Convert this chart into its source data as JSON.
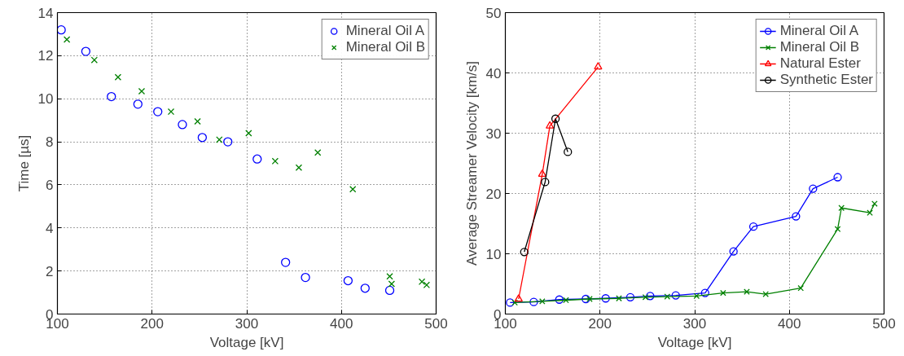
{
  "chart_data": [
    {
      "type": "scatter",
      "xlabel": "Voltage [kV]",
      "ylabel": "Time [µs]",
      "xlim": [
        100,
        500
      ],
      "ylim": [
        0,
        14
      ],
      "xticks": [
        100,
        200,
        300,
        400,
        500
      ],
      "yticks": [
        0,
        2,
        4,
        6,
        8,
        10,
        12,
        14
      ],
      "grid": true,
      "legend": "top right",
      "series": [
        {
          "name": "Mineral Oil A",
          "color": "#0000ff",
          "marker": "circle",
          "x": [
            104,
            130,
            157,
            185,
            206,
            232,
            253,
            280,
            311,
            341,
            362,
            407,
            425,
            451
          ],
          "values": [
            13.2,
            12.2,
            10.1,
            9.75,
            9.4,
            8.8,
            8.2,
            8.0,
            7.2,
            2.4,
            1.7,
            1.55,
            1.2,
            1.1
          ]
        },
        {
          "name": "Mineral Oil B",
          "color": "#008000",
          "marker": "cross",
          "x": [
            110,
            139,
            164,
            189,
            220,
            248,
            271,
            302,
            330,
            355,
            375,
            412,
            451,
            453,
            485,
            490
          ],
          "values": [
            12.75,
            11.8,
            11.0,
            10.35,
            9.4,
            8.95,
            8.1,
            8.4,
            7.1,
            6.8,
            7.5,
            5.8,
            1.75,
            1.4,
            1.5,
            1.35
          ]
        }
      ]
    },
    {
      "type": "line",
      "xlabel": "Voltage [kV]",
      "ylabel": "Average Streamer Velocity [km/s]",
      "xlim": [
        100,
        500
      ],
      "ylim": [
        0,
        50
      ],
      "xticks": [
        100,
        200,
        300,
        400,
        500
      ],
      "yticks": [
        0,
        10,
        20,
        30,
        40,
        50
      ],
      "grid": true,
      "legend": "top right",
      "series": [
        {
          "name": "Mineral Oil A",
          "color": "#0000ff",
          "marker": "circle",
          "x": [
            105,
            130,
            157,
            185,
            206,
            232,
            253,
            280,
            311,
            341,
            362,
            407,
            425,
            451
          ],
          "values": [
            1.9,
            2.0,
            2.4,
            2.5,
            2.6,
            2.8,
            3.0,
            3.1,
            3.5,
            10.4,
            14.5,
            16.2,
            20.8,
            22.7
          ]
        },
        {
          "name": "Mineral Oil B",
          "color": "#008000",
          "marker": "cross",
          "x": [
            110,
            139,
            164,
            189,
            220,
            248,
            271,
            302,
            330,
            355,
            375,
            412,
            451,
            455,
            485,
            490
          ],
          "values": [
            1.9,
            2.1,
            2.3,
            2.5,
            2.6,
            2.8,
            2.9,
            3.0,
            3.5,
            3.7,
            3.3,
            4.3,
            14.1,
            17.6,
            16.8,
            18.3
          ]
        },
        {
          "name": "Natural Ester",
          "color": "#ff0000",
          "marker": "triangle",
          "x": [
            114,
            139,
            147,
            198
          ],
          "values": [
            2.5,
            23.2,
            31.2,
            41.0
          ]
        },
        {
          "name": "Synthetic Ester",
          "color": "#000000",
          "marker": "circle",
          "x": [
            120,
            142,
            153,
            166
          ],
          "values": [
            10.3,
            21.9,
            32.4,
            26.9
          ]
        }
      ]
    }
  ]
}
